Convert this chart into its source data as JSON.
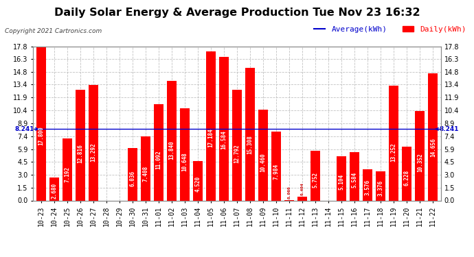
{
  "title": "Daily Solar Energy & Average Production Tue Nov 23 16:32",
  "copyright": "Copyright 2021 Cartronics.com",
  "categories": [
    "10-23",
    "10-24",
    "10-25",
    "10-26",
    "10-27",
    "10-28",
    "10-29",
    "10-30",
    "10-31",
    "11-01",
    "11-02",
    "11-03",
    "11-04",
    "11-05",
    "11-06",
    "11-07",
    "11-08",
    "11-09",
    "11-10",
    "11-11",
    "11-12",
    "11-13",
    "11-14",
    "11-15",
    "11-16",
    "11-17",
    "11-18",
    "11-19",
    "11-20",
    "11-21",
    "11-22"
  ],
  "values": [
    17.8,
    2.68,
    7.192,
    12.816,
    13.292,
    0.0,
    0.0,
    6.036,
    7.408,
    11.092,
    13.84,
    10.648,
    4.52,
    17.184,
    16.584,
    12.792,
    15.308,
    10.46,
    7.984,
    0.06,
    0.404,
    5.752,
    0.0,
    5.104,
    5.584,
    3.576,
    3.376,
    13.252,
    6.228,
    10.352,
    14.656
  ],
  "average": 8.241,
  "bar_color": "#ff0000",
  "avg_line_color": "#0000cc",
  "avg_label_color": "#0000cc",
  "bar_label_color": "#ffffff",
  "background_color": "#ffffff",
  "plot_bg_color": "#ffffff",
  "grid_color": "#bbbbbb",
  "title_color": "#000000",
  "yticks": [
    0.0,
    1.5,
    3.0,
    4.5,
    5.9,
    7.4,
    8.9,
    10.4,
    11.9,
    13.4,
    14.8,
    16.3,
    17.8
  ],
  "legend_avg_label": "Average(kWh)",
  "legend_daily_label": "Daily(kWh)",
  "title_fontsize": 11.5,
  "bar_label_fontsize": 5.5,
  "tick_fontsize": 7,
  "copyright_fontsize": 6.5,
  "legend_fontsize": 8,
  "ymax": 17.8,
  "ymin": 0.0
}
